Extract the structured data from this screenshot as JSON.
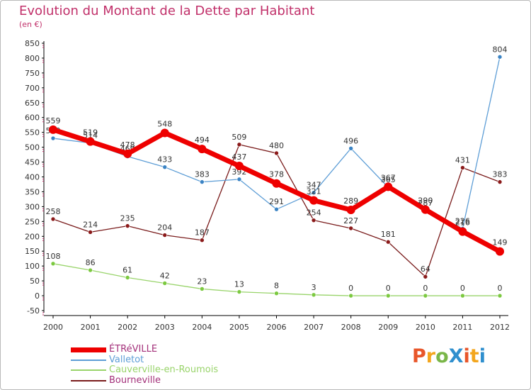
{
  "title": "Evolution du Montant de la Dette par Habitant",
  "subtitle": "(en €)",
  "logo": {
    "text": "ProXiti",
    "colors": [
      "#e8562a",
      "#f3a61d",
      "#7ab648",
      "#2f8fce",
      "#e8562a",
      "#f3a61d",
      "#2f8fce"
    ]
  },
  "chart_data": {
    "type": "line",
    "title": "Evolution du Montant de la Dette par Habitant",
    "ylabel": "(en €)",
    "x": [
      "2000",
      "2001",
      "2002",
      "2003",
      "2004",
      "2005",
      "2006",
      "2007",
      "2008",
      "2009",
      "2010",
      "2011",
      "2012"
    ],
    "ylim": [
      -50,
      850
    ],
    "yticks": [
      -50,
      0,
      50,
      100,
      150,
      200,
      250,
      300,
      350,
      400,
      450,
      500,
      550,
      600,
      650,
      700,
      750,
      800,
      850
    ],
    "grid": false,
    "legend_position": "bottom-left",
    "series": [
      {
        "name": "Bourneville",
        "color": "#7a1c1c",
        "marker": "#8b1a1a",
        "values": [
          258,
          214,
          235,
          204,
          187,
          509,
          480,
          254,
          227,
          181,
          64,
          431,
          383
        ],
        "labels": [
          "258",
          "214",
          "235",
          "204",
          "187",
          "509",
          "480",
          "254",
          "227",
          "181",
          "64",
          "431",
          "383"
        ]
      },
      {
        "name": "Cauverville-en-Roumois",
        "color": "#99d46b",
        "marker": "#7cc940",
        "values": [
          108,
          86,
          61,
          42,
          23,
          13,
          8,
          3,
          0,
          0,
          0,
          0,
          0
        ],
        "labels": [
          "108",
          "86",
          "61",
          "42",
          "23",
          "13",
          "8",
          "3",
          "0",
          "0",
          "0",
          "0",
          "0"
        ]
      },
      {
        "name": "Valletot",
        "color": "#5e9ed6",
        "marker": "#3a83c4",
        "values": [
          530,
          514,
          469,
          433,
          383,
          392,
          291,
          347,
          496,
          365,
          287,
          226,
          804
        ],
        "labels": [
          "530",
          "514",
          "469",
          "433",
          "383",
          "392",
          "291",
          "347",
          "496",
          "365",
          "287",
          "226",
          "804"
        ]
      },
      {
        "name": "ÉTRéVILLE",
        "color": "#ee0000",
        "marker": "#ee0000",
        "values": [
          559,
          519,
          478,
          548,
          494,
          437,
          378,
          321,
          289,
          367,
          290,
          216,
          149
        ],
        "labels": [
          "559",
          "519",
          "478",
          "548",
          "494",
          "437",
          "378",
          "321",
          "289",
          "367",
          "290",
          "216",
          "149"
        ]
      }
    ],
    "legend": [
      {
        "name": "ÉTRéVILLE",
        "color": "#ee0000"
      },
      {
        "name": "Valletot",
        "color": "#5e9ed6"
      },
      {
        "name": "Cauverville-en-Roumois",
        "color": "#99d46b"
      },
      {
        "name": "Bourneville",
        "color": "#7a1c1c"
      }
    ]
  }
}
